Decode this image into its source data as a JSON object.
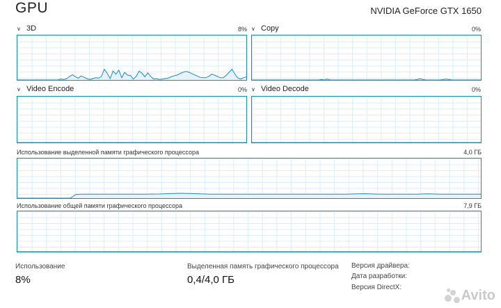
{
  "header": {
    "title": "GPU",
    "gpu_model": "NVIDIA GeForce GTX 1650"
  },
  "panels": {
    "threeD": {
      "label": "3D",
      "percent": "8%"
    },
    "copy": {
      "label": "Copy",
      "percent": "0%"
    },
    "video_encode": {
      "label": "Video Encode",
      "percent": "0%"
    },
    "video_decode": {
      "label": "Video Decode",
      "percent": "0%"
    }
  },
  "memory": {
    "dedicated": {
      "label": "Использование выделенной памяти графического процессора",
      "max": "4,0 ГБ"
    },
    "shared": {
      "label": "Использование общей памяти графического процессора",
      "max": "7,9 ГБ"
    }
  },
  "stats": {
    "usage": {
      "label": "Использование",
      "value": "8%"
    },
    "dedicated_mem": {
      "label": "Выделенная память графического процессора",
      "value": "0,4/4,0 ГБ"
    }
  },
  "info": {
    "driver_version": "Версия драйвера:",
    "driver_date": "Дата разработки:",
    "directx_version": "Версия DirectX:"
  },
  "watermark": {
    "text": "Avito"
  },
  "colors": {
    "line": "#118dc4",
    "grid": "#d9eef8",
    "fill": "#e6f3fa"
  },
  "series": {
    "threeD": [
      0,
      0,
      0,
      0,
      0,
      0,
      0,
      0,
      0,
      0,
      0,
      0,
      0,
      0,
      0,
      2,
      1,
      3,
      8,
      12,
      7,
      4,
      9,
      6,
      3,
      1,
      3,
      5,
      4,
      8,
      24,
      15,
      3,
      20,
      13,
      22,
      5,
      17,
      11,
      10,
      2,
      8,
      20,
      15,
      7,
      16,
      8,
      2,
      3,
      1,
      2,
      3,
      4,
      7,
      9,
      11,
      14,
      17,
      19,
      18,
      15,
      12,
      9,
      6,
      5,
      5,
      8,
      13,
      11,
      8,
      5,
      5,
      10,
      17,
      24,
      14,
      5,
      2,
      5,
      7
    ],
    "copy": [
      0,
      0,
      0,
      0,
      0,
      0,
      0,
      0,
      0,
      0,
      0,
      0,
      0,
      0,
      0,
      0,
      0,
      0,
      0,
      0,
      0,
      0,
      0,
      0,
      1,
      0,
      2,
      0,
      0,
      0,
      0,
      0,
      0,
      0,
      0,
      0,
      0,
      0,
      0,
      0,
      0,
      0,
      0,
      0,
      0,
      0,
      0,
      0,
      0,
      0,
      0,
      0,
      0,
      0,
      0,
      0,
      0,
      1,
      3,
      1,
      0,
      0,
      0,
      0,
      0,
      0,
      1,
      2,
      1,
      0,
      0,
      0,
      0,
      0,
      0,
      0,
      0,
      0,
      0,
      0
    ],
    "encode": [
      0,
      0,
      0,
      0,
      0,
      0,
      0,
      0,
      0,
      0,
      0,
      0,
      0,
      0,
      0,
      0,
      0,
      0,
      0,
      0,
      0,
      0,
      0,
      0,
      0,
      0,
      0,
      0,
      0,
      0,
      0,
      0,
      0,
      0,
      0,
      0,
      0,
      0,
      0,
      0,
      0,
      0,
      0,
      0,
      0,
      0,
      0,
      0,
      0,
      0,
      0,
      0,
      0,
      0,
      0,
      0,
      0,
      0,
      0,
      0,
      0,
      0,
      0,
      0,
      0,
      0,
      0,
      0,
      0,
      0,
      0,
      0,
      0,
      0,
      0,
      0,
      0,
      0,
      0,
      0
    ],
    "decode": [
      0,
      0,
      0,
      0,
      0,
      0,
      0,
      0,
      0,
      0,
      0,
      0,
      0,
      0,
      0,
      0,
      0,
      0,
      0,
      0,
      0,
      0,
      0,
      0,
      0,
      0,
      0,
      0,
      0,
      0,
      0,
      0,
      0,
      0,
      0,
      0,
      0,
      0,
      0,
      0,
      0,
      0,
      0,
      0,
      0,
      0,
      0,
      0,
      0,
      0,
      0,
      0,
      0,
      0,
      0,
      0,
      0,
      0,
      0,
      0,
      0,
      0,
      0,
      0,
      0,
      0,
      0,
      0,
      0,
      0,
      0,
      0,
      0,
      0,
      0,
      0,
      0,
      0,
      0,
      0
    ],
    "dedicated_mem": [
      0,
      0,
      0,
      0,
      0,
      0,
      0,
      0,
      0,
      0,
      9.5,
      10,
      10,
      10,
      10,
      10,
      10,
      10,
      10,
      10,
      10,
      10,
      10,
      10.3,
      10.6,
      11,
      11.5,
      12,
      12.3,
      12,
      11.6,
      11,
      10.5,
      10.2,
      10,
      10,
      10,
      10,
      10,
      10,
      10,
      10,
      10,
      10,
      10,
      10,
      10,
      10,
      10,
      10,
      10,
      10,
      10,
      10,
      10,
      10,
      10.2,
      10.5,
      11,
      11.2,
      10.8,
      10.3,
      10,
      10,
      10,
      10,
      10,
      10,
      10.2,
      10.5,
      10.8,
      10.5,
      10.2,
      10,
      10,
      10,
      10,
      10,
      10,
      10
    ],
    "shared_mem": [
      0,
      0,
      0,
      0,
      0,
      0,
      0,
      0,
      0,
      0,
      0,
      0,
      0,
      0,
      0,
      0,
      0,
      0,
      0,
      0,
      0,
      0,
      0,
      0,
      0,
      0,
      0,
      0,
      0,
      0,
      0,
      0,
      0,
      0,
      0,
      0,
      0,
      0,
      0,
      0,
      0,
      0,
      0,
      0,
      0,
      0,
      0,
      0,
      0,
      0,
      0,
      0,
      0,
      0,
      0,
      0,
      0,
      0,
      0,
      0,
      0,
      0,
      0,
      0,
      0,
      0,
      0,
      0,
      0,
      0,
      0,
      0,
      0,
      0,
      0,
      0,
      0,
      0,
      0,
      0
    ]
  }
}
